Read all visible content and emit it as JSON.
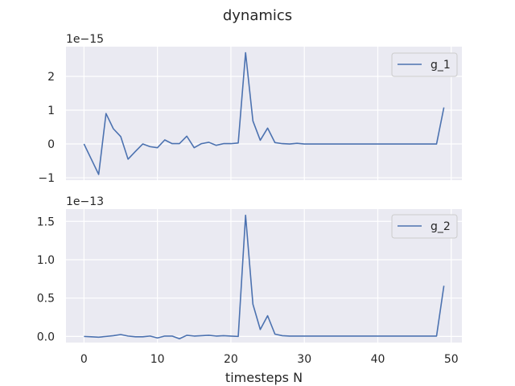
{
  "figure_title": "dynamics",
  "chart_data": [
    {
      "type": "line",
      "title": "",
      "xlabel": "",
      "ylabel": "",
      "offset_label": "1e−15",
      "xlim": [
        -2.45,
        51.45
      ],
      "ylim": [
        -1.07,
        2.88
      ],
      "x_ticks": [
        0,
        10,
        20,
        30,
        40,
        50
      ],
      "y_ticks": [
        -1,
        0,
        1,
        2
      ],
      "y_tick_labels": [
        "−1",
        "0",
        "1",
        "2"
      ],
      "grid": true,
      "legend_position": "upper right",
      "color": "#4c72b0",
      "series": [
        {
          "name": "g_1",
          "x": [
            0,
            1,
            2,
            3,
            4,
            5,
            6,
            7,
            8,
            9,
            10,
            11,
            12,
            13,
            14,
            15,
            16,
            17,
            18,
            19,
            20,
            21,
            22,
            23,
            24,
            25,
            26,
            27,
            28,
            29,
            30,
            31,
            32,
            33,
            34,
            35,
            36,
            37,
            38,
            39,
            40,
            41,
            42,
            43,
            44,
            45,
            46,
            47,
            48,
            49
          ],
          "values": [
            0,
            -0.45,
            -0.9,
            0.9,
            0.45,
            0.22,
            -0.45,
            -0.22,
            0,
            -0.08,
            -0.11,
            0.12,
            0.01,
            0.01,
            0.23,
            -0.11,
            0.01,
            0.05,
            -0.04,
            0.01,
            0.01,
            0.03,
            2.7,
            0.68,
            0.11,
            0.47,
            0.04,
            0.01,
            0.0,
            0.02,
            0.0,
            0.0,
            0.0,
            0.0,
            0.0,
            0.0,
            0.0,
            0.0,
            0.0,
            0.0,
            0.0,
            0.0,
            0.0,
            0.0,
            0.0,
            0.0,
            0.0,
            0.0,
            0.0,
            1.08
          ]
        }
      ]
    },
    {
      "type": "line",
      "title": "",
      "xlabel": "timesteps N",
      "ylabel": "",
      "offset_label": "1e−13",
      "xlim": [
        -2.45,
        51.45
      ],
      "ylim": [
        -0.08,
        1.66
      ],
      "x_ticks": [
        0,
        10,
        20,
        30,
        40,
        50
      ],
      "y_ticks": [
        0.0,
        0.5,
        1.0,
        1.5
      ],
      "y_tick_labels": [
        "0.0",
        "0.5",
        "1.0",
        "1.5"
      ],
      "grid": true,
      "legend_position": "upper right",
      "color": "#4c72b0",
      "series": [
        {
          "name": "g_2",
          "x": [
            0,
            1,
            2,
            3,
            4,
            5,
            6,
            7,
            8,
            9,
            10,
            11,
            12,
            13,
            14,
            15,
            16,
            17,
            18,
            19,
            20,
            21,
            22,
            23,
            24,
            25,
            26,
            27,
            28,
            29,
            30,
            31,
            32,
            33,
            34,
            35,
            36,
            37,
            38,
            39,
            40,
            41,
            42,
            43,
            44,
            45,
            46,
            47,
            48,
            49
          ],
          "values": [
            0,
            -0.005,
            -0.01,
            0.0,
            0.01,
            0.025,
            0.005,
            -0.005,
            -0.005,
            0.005,
            -0.02,
            0.005,
            0.005,
            -0.03,
            0.015,
            0.005,
            0.01,
            0.015,
            0.005,
            0.01,
            0.005,
            0.0,
            1.58,
            0.42,
            0.09,
            0.27,
            0.03,
            0.01,
            0.005,
            0.005,
            0.005,
            0.005,
            0.005,
            0.005,
            0.005,
            0.005,
            0.005,
            0.005,
            0.005,
            0.005,
            0.005,
            0.005,
            0.005,
            0.005,
            0.005,
            0.005,
            0.005,
            0.005,
            0.005,
            0.66
          ]
        }
      ]
    }
  ]
}
